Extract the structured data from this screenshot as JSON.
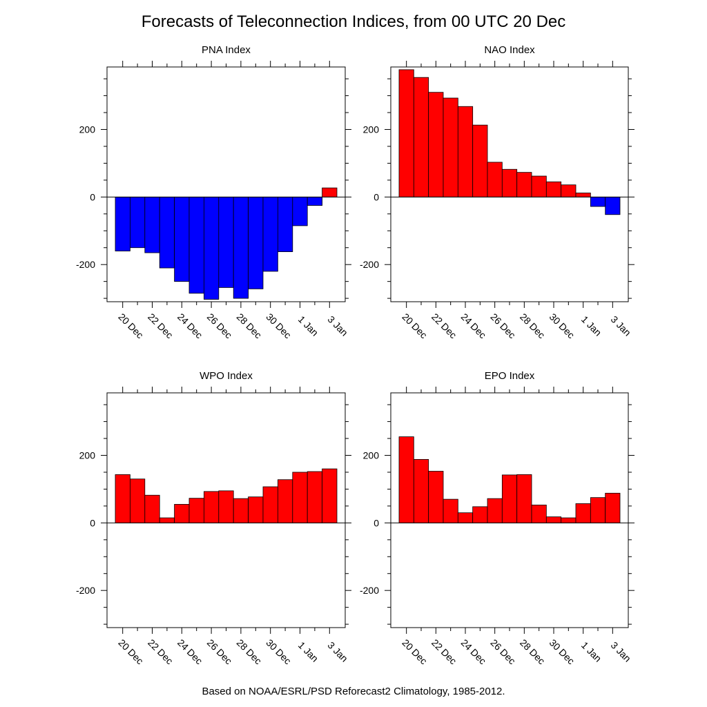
{
  "title": "Forecasts of Teleconnection Indices, from 00 UTC 20 Dec",
  "footer": "Based on NOAA/ESRL/PSD Reforecast2 Climatology, 1985-2012.",
  "colors": {
    "positive": "#ff0000",
    "negative": "#0000ff",
    "axis": "#000000"
  },
  "chart_data": [
    {
      "type": "bar",
      "title": "PNA Index",
      "ylim": [
        -310,
        385
      ],
      "yticks": [
        "200",
        "0",
        "-200"
      ],
      "ytick_values": [
        200,
        0,
        -200
      ],
      "xtick_labels": [
        "20 Dec",
        "22 Dec",
        "24 Dec",
        "26 Dec",
        "28 Dec",
        "30 Dec",
        "1 Jan",
        "3 Jan"
      ],
      "categories": [
        "20 Dec",
        "21 Dec",
        "22 Dec",
        "23 Dec",
        "24 Dec",
        "25 Dec",
        "26 Dec",
        "27 Dec",
        "28 Dec",
        "29 Dec",
        "30 Dec",
        "31 Dec",
        "1 Jan",
        "2 Jan",
        "3 Jan"
      ],
      "values": [
        -160,
        -150,
        -165,
        -210,
        -250,
        -285,
        -303,
        -268,
        -300,
        -272,
        -220,
        -162,
        -85,
        -25,
        27
      ]
    },
    {
      "type": "bar",
      "title": "NAO Index",
      "ylim": [
        -310,
        385
      ],
      "yticks": [
        "200",
        "0",
        "-200"
      ],
      "ytick_values": [
        200,
        0,
        -200
      ],
      "xtick_labels": [
        "20 Dec",
        "22 Dec",
        "24 Dec",
        "26 Dec",
        "28 Dec",
        "30 Dec",
        "1 Jan",
        "3 Jan"
      ],
      "categories": [
        "20 Dec",
        "21 Dec",
        "22 Dec",
        "23 Dec",
        "24 Dec",
        "25 Dec",
        "26 Dec",
        "27 Dec",
        "28 Dec",
        "29 Dec",
        "30 Dec",
        "31 Dec",
        "1 Jan",
        "2 Jan",
        "3 Jan"
      ],
      "values": [
        377,
        354,
        310,
        293,
        268,
        213,
        103,
        82,
        73,
        62,
        45,
        36,
        12,
        -28,
        -52
      ]
    },
    {
      "type": "bar",
      "title": "WPO Index",
      "ylim": [
        -310,
        385
      ],
      "yticks": [
        "200",
        "0",
        "-200"
      ],
      "ytick_values": [
        200,
        0,
        -200
      ],
      "xtick_labels": [
        "20 Dec",
        "22 Dec",
        "24 Dec",
        "26 Dec",
        "28 Dec",
        "30 Dec",
        "1 Jan",
        "3 Jan"
      ],
      "categories": [
        "20 Dec",
        "21 Dec",
        "22 Dec",
        "23 Dec",
        "24 Dec",
        "25 Dec",
        "26 Dec",
        "27 Dec",
        "28 Dec",
        "29 Dec",
        "30 Dec",
        "31 Dec",
        "1 Jan",
        "2 Jan",
        "3 Jan"
      ],
      "values": [
        143,
        130,
        82,
        15,
        55,
        73,
        93,
        95,
        72,
        77,
        107,
        128,
        150,
        152,
        160
      ]
    },
    {
      "type": "bar",
      "title": "EPO Index",
      "ylim": [
        -310,
        385
      ],
      "yticks": [
        "200",
        "0",
        "-200"
      ],
      "ytick_values": [
        200,
        0,
        -200
      ],
      "xtick_labels": [
        "20 Dec",
        "22 Dec",
        "24 Dec",
        "26 Dec",
        "28 Dec",
        "30 Dec",
        "1 Jan",
        "3 Jan"
      ],
      "categories": [
        "20 Dec",
        "21 Dec",
        "22 Dec",
        "23 Dec",
        "24 Dec",
        "25 Dec",
        "26 Dec",
        "27 Dec",
        "28 Dec",
        "29 Dec",
        "30 Dec",
        "31 Dec",
        "1 Jan",
        "2 Jan",
        "3 Jan"
      ],
      "values": [
        255,
        188,
        153,
        70,
        30,
        48,
        72,
        142,
        143,
        53,
        18,
        15,
        57,
        75,
        88
      ]
    }
  ]
}
